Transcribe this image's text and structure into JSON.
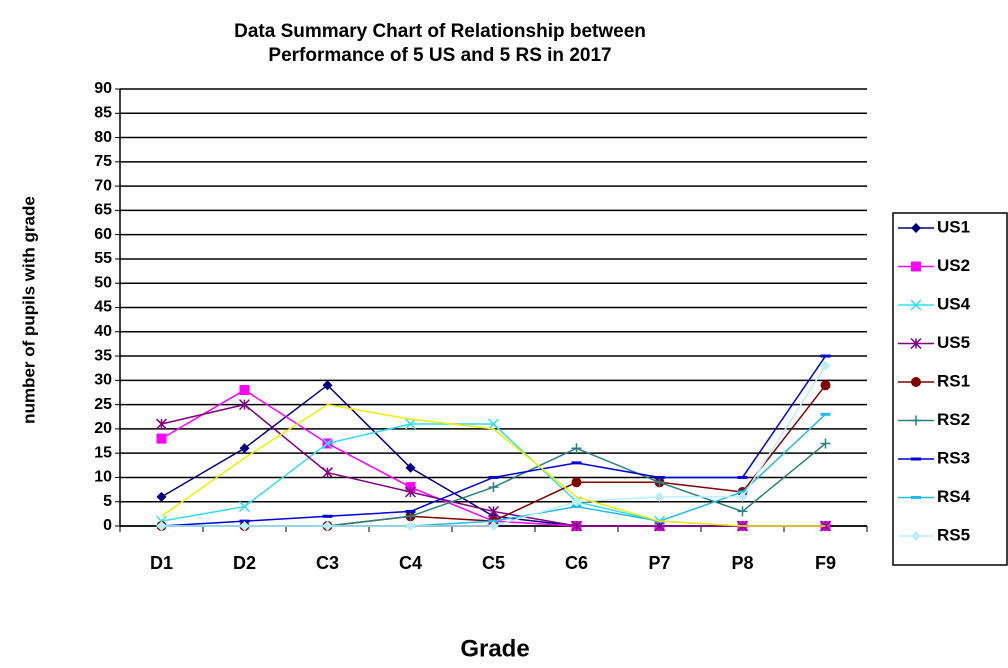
{
  "chart_data": {
    "type": "line",
    "title": [
      "Data Summary Chart of Relationship  between",
      "Performance of 5 US and  5 RS in 2017"
    ],
    "x_label": "Grade",
    "y_label": "number of pupils with grade",
    "categories": [
      "D1",
      "D2",
      "C3",
      "C4",
      "C5",
      "C6",
      "P7",
      "P8",
      "F9"
    ],
    "ylim": [
      0,
      90
    ],
    "yticks": [
      0,
      5,
      10,
      15,
      20,
      25,
      30,
      35,
      40,
      45,
      50,
      55,
      60,
      65,
      70,
      75,
      80,
      85,
      90
    ],
    "grid": true,
    "legend": "right",
    "series": [
      {
        "name": "US1",
        "color": "#000080",
        "marker": "diamond",
        "values": [
          6,
          16,
          29,
          12,
          2,
          0,
          0,
          0,
          0
        ]
      },
      {
        "name": "US2",
        "color": "#ff00ff",
        "marker": "square",
        "values": [
          18,
          28,
          17,
          8,
          1,
          0,
          0,
          0,
          0
        ]
      },
      {
        "name": "US4",
        "color": "#33ddee",
        "marker": "x",
        "values": [
          1,
          4,
          17,
          21,
          21,
          5,
          1,
          0,
          0
        ]
      },
      {
        "name": "US5",
        "color": "#800080",
        "marker": "star",
        "values": [
          21,
          25,
          11,
          7,
          3,
          0,
          0,
          0,
          0
        ]
      },
      {
        "name": "RS1",
        "color": "#800000",
        "marker": "circle",
        "values": [
          0,
          0,
          0,
          2,
          1,
          9,
          9,
          7,
          29
        ]
      },
      {
        "name": "RS2",
        "color": "#2a8080",
        "marker": "plus",
        "values": [
          0,
          0,
          0,
          2,
          8,
          16,
          9,
          3,
          17
        ]
      },
      {
        "name": "RS3",
        "color": "#0000dd",
        "marker": "dash",
        "values": [
          0,
          1,
          2,
          3,
          10,
          13,
          10,
          10,
          35
        ]
      },
      {
        "name": "RS4",
        "color": "#22bbee",
        "marker": "dash",
        "values": [
          0,
          0,
          0,
          0,
          1,
          4,
          1,
          7,
          23
        ]
      },
      {
        "name": "RS5",
        "color": "#bbeeff",
        "marker": "diamond",
        "values": [
          0,
          0,
          0,
          0,
          0,
          5,
          6,
          6,
          33
        ]
      },
      {
        "name": null,
        "color": "#eeee00",
        "marker": "none",
        "values": [
          2,
          14,
          25,
          22,
          20,
          6,
          1,
          0,
          0
        ]
      }
    ]
  }
}
